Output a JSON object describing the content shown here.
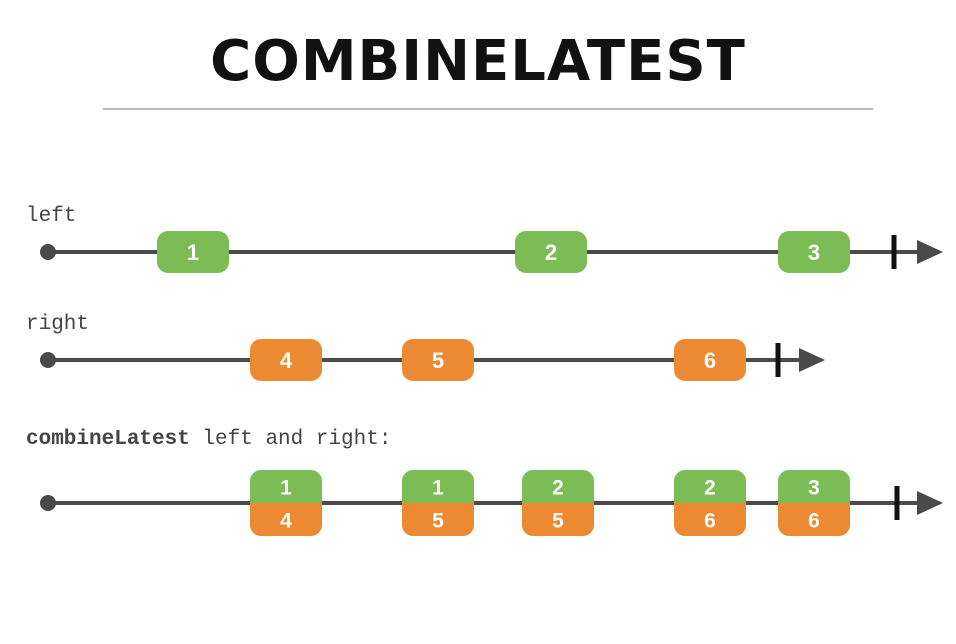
{
  "title": "COMBINELATEST",
  "colors": {
    "line": "#4a4a4a",
    "left": "#7cbc55",
    "right": "#ec8a34",
    "text": "#444444",
    "title": "#111111"
  },
  "timelines": [
    {
      "id": "left",
      "label": "left",
      "marbles": [
        {
          "value": "1",
          "source": "left"
        },
        {
          "value": "2",
          "source": "left"
        },
        {
          "value": "3",
          "source": "left"
        }
      ]
    },
    {
      "id": "right",
      "label": "right",
      "marbles": [
        {
          "value": "4",
          "source": "right"
        },
        {
          "value": "5",
          "source": "right"
        },
        {
          "value": "6",
          "source": "right"
        }
      ]
    },
    {
      "id": "combined",
      "label_bold": "combineLatest",
      "label_rest": " left and right:",
      "marbles": [
        {
          "top": "1",
          "bottom": "4"
        },
        {
          "top": "1",
          "bottom": "5"
        },
        {
          "top": "2",
          "bottom": "5"
        },
        {
          "top": "2",
          "bottom": "6"
        },
        {
          "top": "3",
          "bottom": "6"
        }
      ]
    }
  ]
}
